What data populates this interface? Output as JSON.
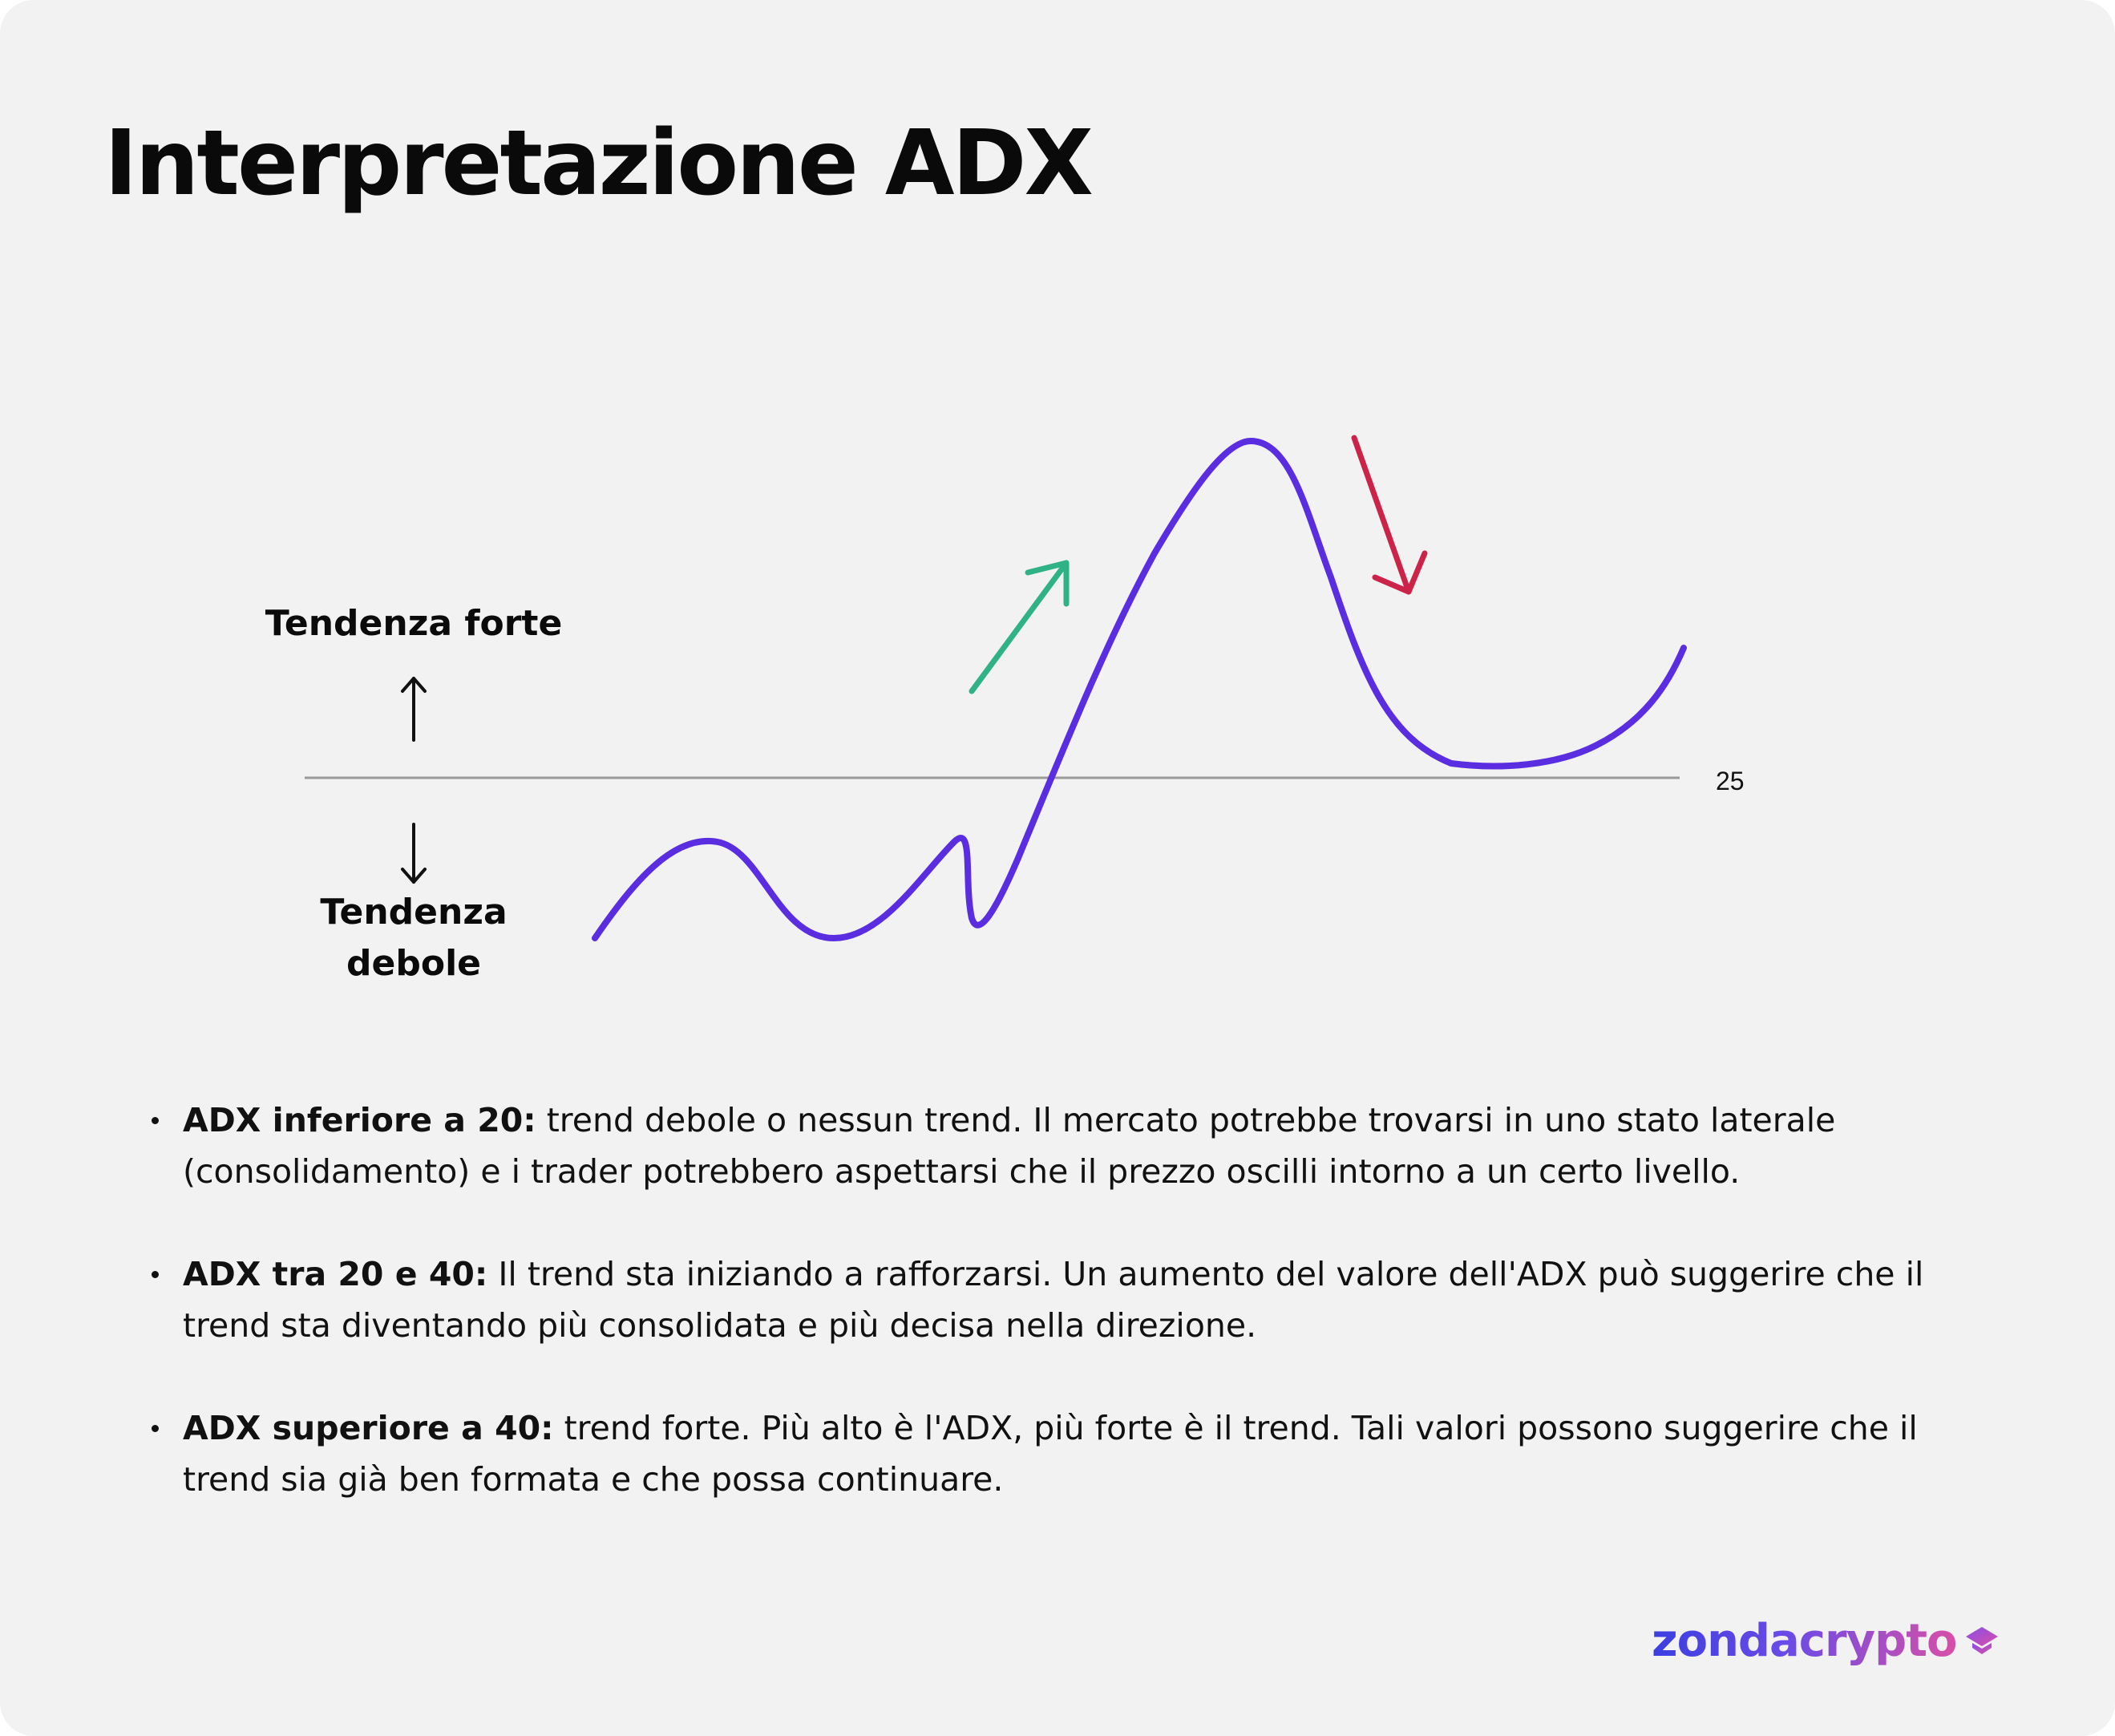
{
  "page": {
    "title": "Interpretazione ADX"
  },
  "diagram": {
    "label_strong": "Tendenza forte",
    "label_weak_line1": "Tendenza",
    "label_weak_line2": "debole",
    "threshold_label": "25",
    "colors": {
      "curve": "#5a2ee0",
      "up_arrow": "#2fb285",
      "down_arrow": "#cc2448",
      "threshold_line": "#9a9a9a"
    },
    "icons": [
      "arrow-up-icon",
      "arrow-down-icon",
      "rising-arrow-icon",
      "falling-arrow-icon"
    ]
  },
  "bullets": [
    {
      "term": "ADX inferiore a 20:",
      "text": " trend debole o nessun trend. Il mercato potrebbe trovarsi in uno stato laterale (consolidamento) e i trader potrebbero aspettarsi che il prezzo oscilli intorno a un certo livello."
    },
    {
      "term": "ADX tra 20 e 40:",
      "text": " Il trend sta iniziando a rafforzarsi. Un aumento del valore dell'ADX può suggerire che il trend sta diventando più consolidata e più decisa nella direzione."
    },
    {
      "term": "ADX superiore a 40:",
      "text": " trend forte. Più alto è l'ADX, più forte è il trend. Tali valori possono suggerire che il trend sia già ben formata e che possa continuare."
    }
  ],
  "brand": {
    "logo_text": "zondacrypto",
    "logo_icon": "zonda-logo-icon",
    "gradient_start": "#3b3fe0",
    "gradient_end": "#d84fa8"
  }
}
